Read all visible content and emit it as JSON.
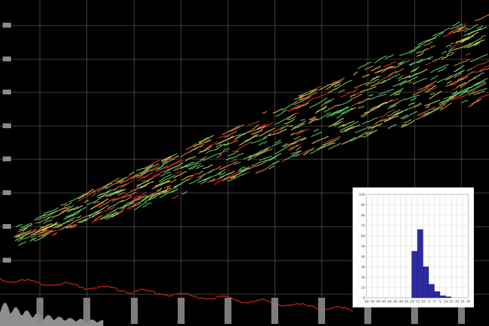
{
  "colors": {
    "background": "#000000",
    "grid": "#5a5a5a",
    "track_green": "#5fd16a",
    "track_yellow": "#e8d44a",
    "track_orange": "#e8843a",
    "track_red": "#d8342c",
    "baseline_trace": "#c0201c",
    "tick_tab": "#8a8a8a",
    "histogram_bar": "#2c2ca0",
    "histogram_grid": "#d0d0d0"
  },
  "chart_data": [
    {
      "type": "scatter",
      "description_of_marks": "dense short track segments rising from lower-left to upper-right",
      "y_tick_labels": [
        "",
        "",
        "",
        "",
        "",
        "",
        "",
        ""
      ],
      "x_tick_labels": [
        "",
        "",
        "",
        "",
        "",
        "",
        "",
        "",
        "",
        ""
      ],
      "grid": true,
      "series": [
        {
          "color": "green",
          "x": [
            40,
            80,
            120,
            160,
            200,
            240,
            280,
            320,
            360,
            400,
            440,
            480,
            520,
            560,
            600,
            640
          ],
          "y": [
            0.08,
            0.13,
            0.17,
            0.22,
            0.27,
            0.33,
            0.38,
            0.43,
            0.47,
            0.52,
            0.57,
            0.62,
            0.65,
            0.68,
            0.72,
            0.75
          ]
        },
        {
          "color": "yellow",
          "x": [
            40,
            80,
            120,
            160,
            200,
            240,
            280,
            320,
            360,
            400,
            440,
            480,
            520,
            560,
            600,
            640
          ],
          "y": [
            0.06,
            0.1,
            0.15,
            0.19,
            0.24,
            0.29,
            0.34,
            0.39,
            0.44,
            0.49,
            0.55,
            0.6,
            0.63,
            0.66,
            0.7,
            0.73
          ]
        },
        {
          "color": "red",
          "x": [
            40,
            80,
            120,
            160,
            200,
            240,
            280,
            320,
            360,
            400,
            440,
            480,
            520,
            560,
            600,
            640
          ],
          "y": [
            0.05,
            0.09,
            0.13,
            0.17,
            0.21,
            0.26,
            0.3,
            0.35,
            0.4,
            0.45,
            0.51,
            0.58,
            0.61,
            0.64,
            0.68,
            0.71
          ]
        }
      ]
    },
    {
      "type": "bar",
      "title": "",
      "y_axis_max": 100,
      "y_ticks": [
        0,
        10,
        20,
        30,
        40,
        50,
        60,
        70,
        80,
        90,
        100
      ],
      "x_ticks": [
        -60,
        -55,
        -50,
        -45,
        -40,
        -35,
        -30,
        -25,
        -20,
        -15,
        -10,
        -5,
        0,
        5,
        10,
        15,
        20,
        25,
        30
      ],
      "bins": [
        {
          "from": -20,
          "to": -15,
          "value": 45
        },
        {
          "from": -15,
          "to": -10,
          "value": 66
        },
        {
          "from": -10,
          "to": -5,
          "value": 30
        },
        {
          "from": -5,
          "to": 0,
          "value": 13
        },
        {
          "from": 0,
          "to": 5,
          "value": 6
        },
        {
          "from": 5,
          "to": 10,
          "value": 2
        },
        {
          "from": 10,
          "to": 15,
          "value": 1
        }
      ]
    }
  ]
}
